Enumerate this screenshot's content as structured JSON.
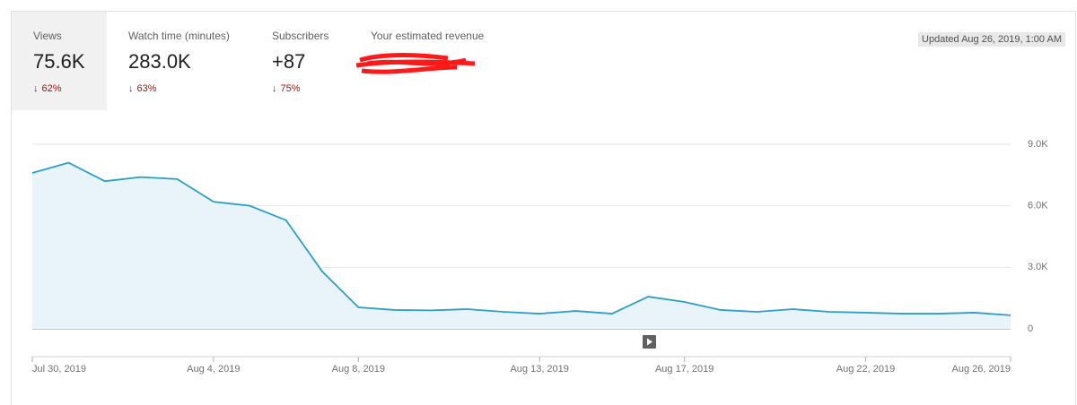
{
  "metrics": [
    {
      "label": "Views",
      "value": "75.6K",
      "change": "62%"
    },
    {
      "label": "Watch time (minutes)",
      "value": "283.0K",
      "change": "63%"
    },
    {
      "label": "Subscribers",
      "value": "+87",
      "change": "75%"
    },
    {
      "label": "Your estimated revenue"
    }
  ],
  "updated": "Updated Aug 26, 2019, 1:00 AM",
  "chart_data": {
    "type": "area",
    "categories": [
      "Jul 30, 2019",
      null,
      null,
      null,
      null,
      "Aug 4, 2019",
      null,
      null,
      null,
      "Aug 8, 2019",
      null,
      null,
      null,
      null,
      "Aug 13, 2019",
      null,
      null,
      null,
      "Aug 17, 2019",
      null,
      null,
      null,
      null,
      "Aug 22, 2019",
      null,
      null,
      null,
      "Aug 26, 2019"
    ],
    "values": [
      7600,
      8100,
      7200,
      7400,
      7300,
      6200,
      6000,
      5300,
      2800,
      1050,
      920,
      900,
      960,
      830,
      740,
      870,
      740,
      1570,
      1310,
      920,
      830,
      960,
      830,
      790,
      740,
      740,
      790,
      660
    ],
    "color": "#2a9fc9",
    "ylim": [
      0,
      9000
    ],
    "yticks": [
      {
        "value": 0,
        "label": "0"
      },
      {
        "value": 3000,
        "label": "3.0K"
      },
      {
        "value": 6000,
        "label": "6.0K"
      },
      {
        "value": 9000,
        "label": "9.0K"
      }
    ],
    "grid": true
  }
}
